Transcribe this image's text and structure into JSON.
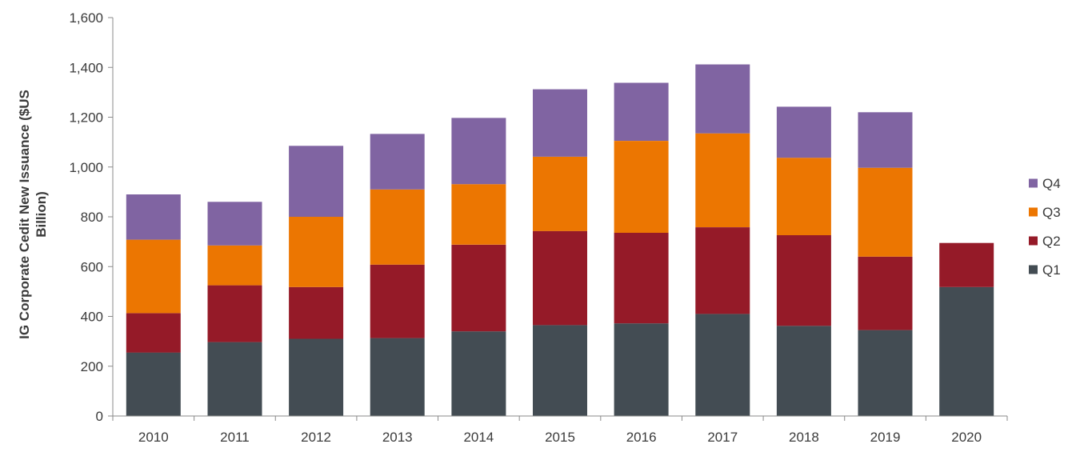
{
  "chart_data": {
    "type": "bar",
    "stacked": true,
    "title": "",
    "xlabel": "",
    "ylabel_lines": [
      "IG Corporate Cedit New Issuance ($US",
      "Billion)"
    ],
    "ylim": [
      0,
      1600
    ],
    "ytick_values": [
      0,
      200,
      400,
      600,
      800,
      1000,
      1200,
      1400,
      1600
    ],
    "ytick_labels": [
      "0",
      "200",
      "400",
      "600",
      "800",
      "1,000",
      "1,200",
      "1,400",
      "1,600"
    ],
    "grid": false,
    "legend_position": "right",
    "categories": [
      "2010",
      "2011",
      "2012",
      "2013",
      "2014",
      "2015",
      "2016",
      "2017",
      "2018",
      "2019",
      "2020"
    ],
    "series": [
      {
        "name": "Q1",
        "color": "#434c53",
        "values": [
          255,
          297,
          310,
          313,
          340,
          365,
          372,
          410,
          362,
          345,
          518
        ]
      },
      {
        "name": "Q2",
        "color": "#951a28",
        "values": [
          158,
          228,
          208,
          295,
          348,
          378,
          364,
          348,
          364,
          295,
          177
        ]
      },
      {
        "name": "Q3",
        "color": "#ec7601",
        "values": [
          295,
          160,
          282,
          302,
          243,
          298,
          369,
          377,
          311,
          357,
          0
        ]
      },
      {
        "name": "Q4",
        "color": "#8064a2",
        "values": [
          182,
          175,
          285,
          223,
          266,
          271,
          233,
          277,
          205,
          223,
          0
        ]
      }
    ],
    "legend_order": [
      "Q4",
      "Q3",
      "Q2",
      "Q1"
    ]
  }
}
